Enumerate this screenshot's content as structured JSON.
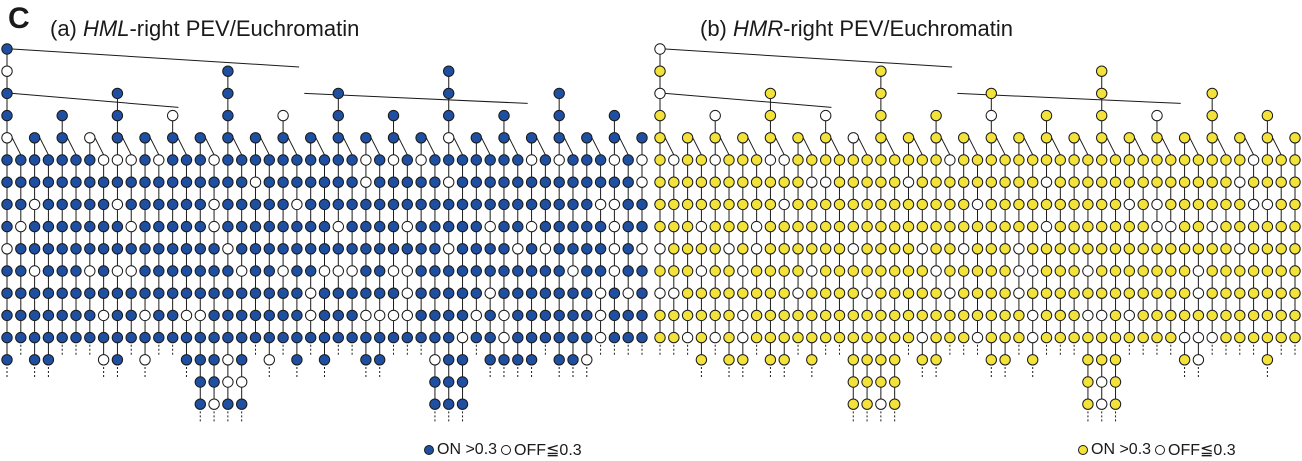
{
  "figure": {
    "letter": "C"
  },
  "panels": [
    {
      "id": "a",
      "title_prefix": "(a) ",
      "title_italic": "HML",
      "title_suffix": "-right PEV/Euchromatin",
      "on_color": "#1f4fa0",
      "off_color": "#ffffff",
      "legend": {
        "on_label": "ON >0.3",
        "off_label": "OFF≦0.3"
      }
    },
    {
      "id": "b",
      "title_prefix": "(b) ",
      "title_italic": "HMR",
      "title_suffix": "-right PEV/Euchromatin",
      "on_color": "#f2e23a",
      "off_color": "#ffffff",
      "legend": {
        "on_label": "ON >0.3",
        "off_label": "OFF≦0.3"
      }
    }
  ]
}
